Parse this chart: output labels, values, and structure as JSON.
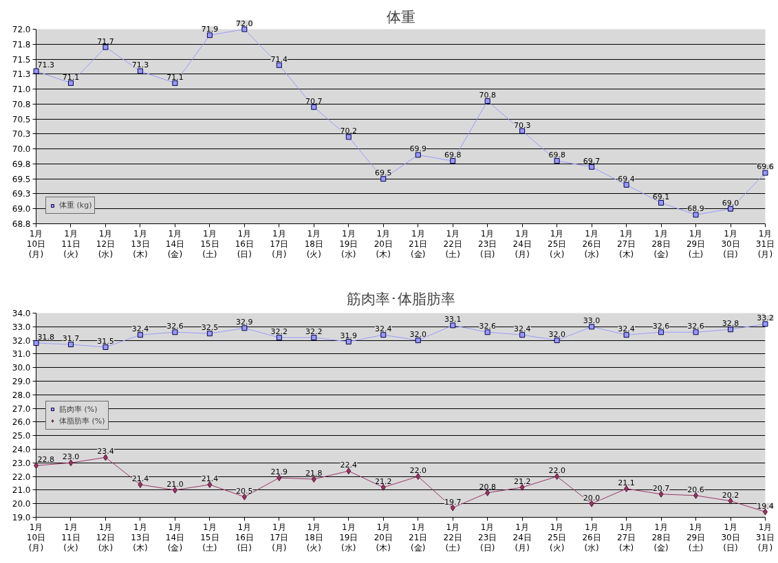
{
  "chart_data": [
    {
      "type": "line",
      "title": "体重",
      "categories": [
        "1月\n10日\n(月)",
        "1月\n11日\n(火)",
        "1月\n12日\n(水)",
        "1月\n13日\n(木)",
        "1月\n14日\n(金)",
        "1月\n15日\n(土)",
        "1月\n16日\n(日)",
        "1月\n17日\n(月)",
        "1月\n18日\n(火)",
        "1月\n19日\n(水)",
        "1月\n20日\n(木)",
        "1月\n21日\n(金)",
        "1月\n22日\n(土)",
        "1月\n23日\n(日)",
        "1月\n24日\n(月)",
        "1月\n25日\n(火)",
        "1月\n26日\n(水)",
        "1月\n27日\n(木)",
        "1月\n28日\n(金)",
        "1月\n29日\n(土)",
        "1月\n30日\n(日)",
        "1月\n31日\n(月)"
      ],
      "series": [
        {
          "name": "体重 (kg)",
          "color": "#9999ff",
          "marker": "square",
          "values": [
            71.3,
            71.1,
            71.7,
            71.3,
            71.1,
            71.9,
            72.0,
            71.4,
            70.7,
            70.2,
            69.5,
            69.9,
            69.8,
            70.8,
            70.3,
            69.8,
            69.7,
            69.4,
            69.1,
            68.9,
            69.0,
            69.6
          ],
          "value_labels": [
            "71.3",
            "71.1",
            "71.7",
            "71.3",
            "71.1",
            "71.9",
            "72.0",
            "71.4",
            "70.7",
            "70.2",
            "69.5",
            "69.9",
            "69.8",
            "70.8",
            "70.3",
            "69.8",
            "69.7",
            "69.4",
            "69.1",
            "68.9",
            "69.0",
            "69.6"
          ]
        }
      ],
      "ylim": [
        68.75,
        72.0
      ],
      "yticks": [
        {
          "value": 68.75,
          "label": "68.8"
        },
        {
          "value": 69.0,
          "label": "69.0"
        },
        {
          "value": 69.25,
          "label": "69.3"
        },
        {
          "value": 69.5,
          "label": "69.5"
        },
        {
          "value": 69.75,
          "label": "69.8"
        },
        {
          "value": 70.0,
          "label": "70.0"
        },
        {
          "value": 70.25,
          "label": "70.3"
        },
        {
          "value": 70.5,
          "label": "70.5"
        },
        {
          "value": 70.75,
          "label": "70.8"
        },
        {
          "value": 71.0,
          "label": "71.0"
        },
        {
          "value": 71.25,
          "label": "71.3"
        },
        {
          "value": 71.5,
          "label": "71.5"
        },
        {
          "value": 71.75,
          "label": "71.8"
        },
        {
          "value": 72.0,
          "label": "72.0"
        }
      ],
      "grid": "y",
      "legend": "bottom left"
    },
    {
      "type": "line",
      "title": "筋肉率･体脂肪率",
      "categories": [
        "1月\n10日\n(月)",
        "1月\n11日\n(火)",
        "1月\n12日\n(水)",
        "1月\n13日\n(木)",
        "1月\n14日\n(金)",
        "1月\n15日\n(土)",
        "1月\n16日\n(日)",
        "1月\n17日\n(月)",
        "1月\n18日\n(火)",
        "1月\n19日\n(水)",
        "1月\n20日\n(木)",
        "1月\n21日\n(金)",
        "1月\n22日\n(土)",
        "1月\n23日\n(日)",
        "1月\n24日\n(月)",
        "1月\n25日\n(火)",
        "1月\n26日\n(水)",
        "1月\n27日\n(木)",
        "1月\n28日\n(金)",
        "1月\n29日\n(土)",
        "1月\n30日\n(日)",
        "1月\n31日\n(月)"
      ],
      "series": [
        {
          "name": "筋肉率 (%)",
          "color": "#9999ff",
          "marker": "square",
          "values": [
            31.8,
            31.7,
            31.5,
            32.4,
            32.6,
            32.5,
            32.9,
            32.2,
            32.2,
            31.9,
            32.4,
            32.0,
            33.1,
            32.6,
            32.4,
            32.0,
            33.0,
            32.4,
            32.6,
            32.6,
            32.8,
            33.2
          ],
          "value_labels": [
            "31.8",
            "31.7",
            "31.5",
            "32.4",
            "32.6",
            "32.5",
            "32.9",
            "32.2",
            "32.2",
            "31.9",
            "32.4",
            "32.0",
            "33.1",
            "32.6",
            "32.4",
            "32.0",
            "33.0",
            "32.4",
            "32.6",
            "32.6",
            "32.8",
            "33.2"
          ]
        },
        {
          "name": "体脂肪率 (%)",
          "color": "#993366",
          "marker": "diamond",
          "values": [
            22.8,
            23.0,
            23.4,
            21.4,
            21.0,
            21.4,
            20.5,
            21.9,
            21.8,
            22.4,
            21.2,
            22.0,
            19.7,
            20.8,
            21.2,
            22.0,
            20.0,
            21.1,
            20.7,
            20.6,
            20.2,
            19.4
          ],
          "value_labels": [
            "22.8",
            "23.0",
            "23.4",
            "21.4",
            "21.0",
            "21.4",
            "20.5",
            "21.9",
            "21.8",
            "22.4",
            "21.2",
            "22.0",
            "19.7",
            "20.8",
            "21.2",
            "22.0",
            "20.0",
            "21.1",
            "20.7",
            "20.6",
            "20.2",
            "19.4"
          ]
        }
      ],
      "ylim": [
        19.0,
        34.0
      ],
      "yticks": [
        {
          "value": 19,
          "label": "19.0"
        },
        {
          "value": 20,
          "label": "20.0"
        },
        {
          "value": 21,
          "label": "21.0"
        },
        {
          "value": 22,
          "label": "22.0"
        },
        {
          "value": 23,
          "label": "23.0"
        },
        {
          "value": 24,
          "label": "24.0"
        },
        {
          "value": 25,
          "label": "25.0"
        },
        {
          "value": 26,
          "label": "26.0"
        },
        {
          "value": 27,
          "label": "27.0"
        },
        {
          "value": 28,
          "label": "28.0"
        },
        {
          "value": 29,
          "label": "29.0"
        },
        {
          "value": 30,
          "label": "30.0"
        },
        {
          "value": 31,
          "label": "31.0"
        },
        {
          "value": 32,
          "label": "32.0"
        },
        {
          "value": 33,
          "label": "33.0"
        },
        {
          "value": 34,
          "label": "34.0"
        }
      ],
      "grid": "y",
      "legend": "left"
    }
  ]
}
